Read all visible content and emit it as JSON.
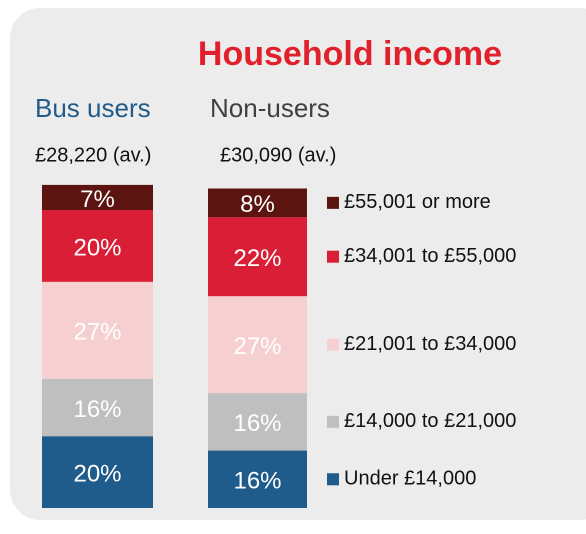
{
  "chart_data": {
    "type": "stacked_bar",
    "title": "Household income",
    "categories": [
      "Bus users",
      "Non-users"
    ],
    "category_subtitles": [
      "£28,220 (av.)",
      "£30,090 (av.)"
    ],
    "category_colors": [
      "#1f5b8b",
      "#404040"
    ],
    "series": [
      {
        "name": "Under £14,000",
        "color": "#1f5b8b",
        "values": [
          20,
          16
        ],
        "value_labels": [
          "20%",
          "16%"
        ]
      },
      {
        "name": "£14,000 to £21,000",
        "color": "#bfbfbf",
        "values": [
          16,
          16
        ],
        "value_labels": [
          "16%",
          "16%"
        ]
      },
      {
        "name": "£21,001 to £34,000",
        "color": "#f6d0d0",
        "values": [
          27,
          27
        ],
        "value_labels": [
          "27%",
          "27%"
        ]
      },
      {
        "name": "£34,001 to  £55,000",
        "color": "#d91e35",
        "values": [
          20,
          22
        ],
        "value_labels": [
          "20%",
          "22%"
        ]
      },
      {
        "name": "£55,001 or more",
        "color": "#5c1410",
        "values": [
          7,
          8
        ],
        "value_labels": [
          "7%",
          "8%"
        ]
      }
    ]
  }
}
